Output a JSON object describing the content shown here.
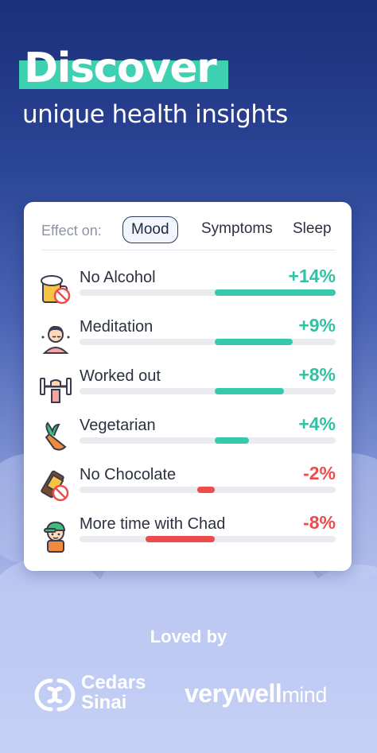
{
  "hero": {
    "title": "Discover",
    "subtitle": "unique health insights",
    "highlight_color": "#3ed1b1"
  },
  "card": {
    "effect_label": "Effect on:",
    "tabs": [
      {
        "label": "Mood",
        "active": true
      },
      {
        "label": "Symptoms",
        "active": false
      },
      {
        "label": "Sleep",
        "active": false
      }
    ],
    "items": [
      {
        "label": "No Alcohol",
        "value": "+14%",
        "pct": 14,
        "icon": "beer-no-alcohol-icon"
      },
      {
        "label": "Meditation",
        "value": "+9%",
        "pct": 9,
        "icon": "meditation-person-icon"
      },
      {
        "label": "Worked out",
        "value": "+8%",
        "pct": 8,
        "icon": "dumbbell-workout-icon"
      },
      {
        "label": "Vegetarian",
        "value": "+4%",
        "pct": 4,
        "icon": "carrot-icon"
      },
      {
        "label": "No Chocolate",
        "value": "-2%",
        "pct": -2,
        "icon": "no-chocolate-icon"
      },
      {
        "label": "More time with Chad",
        "value": "-8%",
        "pct": -8,
        "icon": "boy-cap-icon"
      }
    ],
    "positive_color": "#37c9ab",
    "negative_color": "#ef4b4b"
  },
  "footer": {
    "loved_by": "Loved by",
    "cedars_line1": "Cedars",
    "cedars_line2": "Sinai",
    "verywell": "verywell",
    "mind": "mind"
  }
}
